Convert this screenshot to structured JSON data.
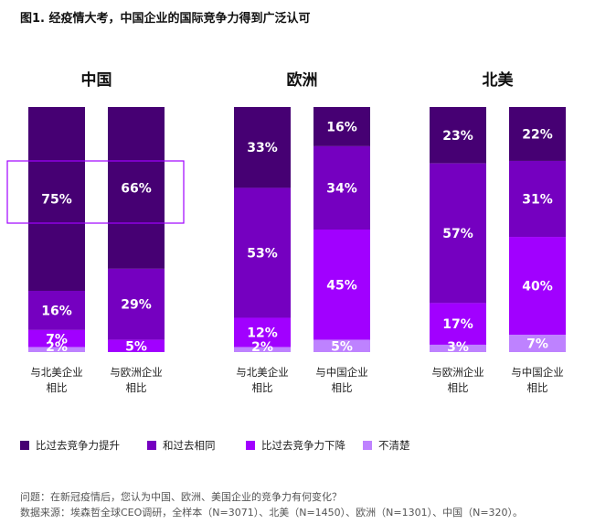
{
  "title": "图1. 经疫情大考，中国企业的国际竞争力得到广泛认可",
  "chart_data": {
    "type": "bar",
    "stacked": true,
    "groups": [
      {
        "name": "中国",
        "bars": [
          {
            "category": "与北美企业\n相比",
            "values": [
              75,
              16,
              7,
              2
            ]
          },
          {
            "category": "与欧洲企业\n相比",
            "values": [
              66,
              29,
              5,
              0
            ]
          }
        ]
      },
      {
        "name": "欧洲",
        "bars": [
          {
            "category": "与北美企业\n相比",
            "values": [
              33,
              53,
              12,
              2
            ]
          },
          {
            "category": "与中国企业\n相比",
            "values": [
              16,
              34,
              45,
              5
            ]
          }
        ]
      },
      {
        "name": "北美",
        "bars": [
          {
            "category": "与欧洲企业\n相比",
            "values": [
              23,
              57,
              17,
              3
            ]
          },
          {
            "category": "与中国企业\n相比",
            "values": [
              22,
              31,
              40,
              7
            ]
          }
        ]
      }
    ],
    "series": [
      {
        "name": "比过去竞争力提升",
        "color": "#460073"
      },
      {
        "name": "和过去相同",
        "color": "#7500c0"
      },
      {
        "name": "比过去竞争力下降",
        "color": "#a100ff"
      },
      {
        "name": "不清楚",
        "color": "#be82ff"
      }
    ],
    "unit": "%",
    "highlight": {
      "group": 0,
      "series": 0
    }
  },
  "footer": {
    "question": "问题：在新冠疫情后，您认为中国、欧洲、美国企业的竞争力有何变化？",
    "source": "数据来源：埃森哲全球CEO调研，全样本（N=3071）、北美（N=1450）、欧洲（N=1301）、中国（N=320）。"
  }
}
